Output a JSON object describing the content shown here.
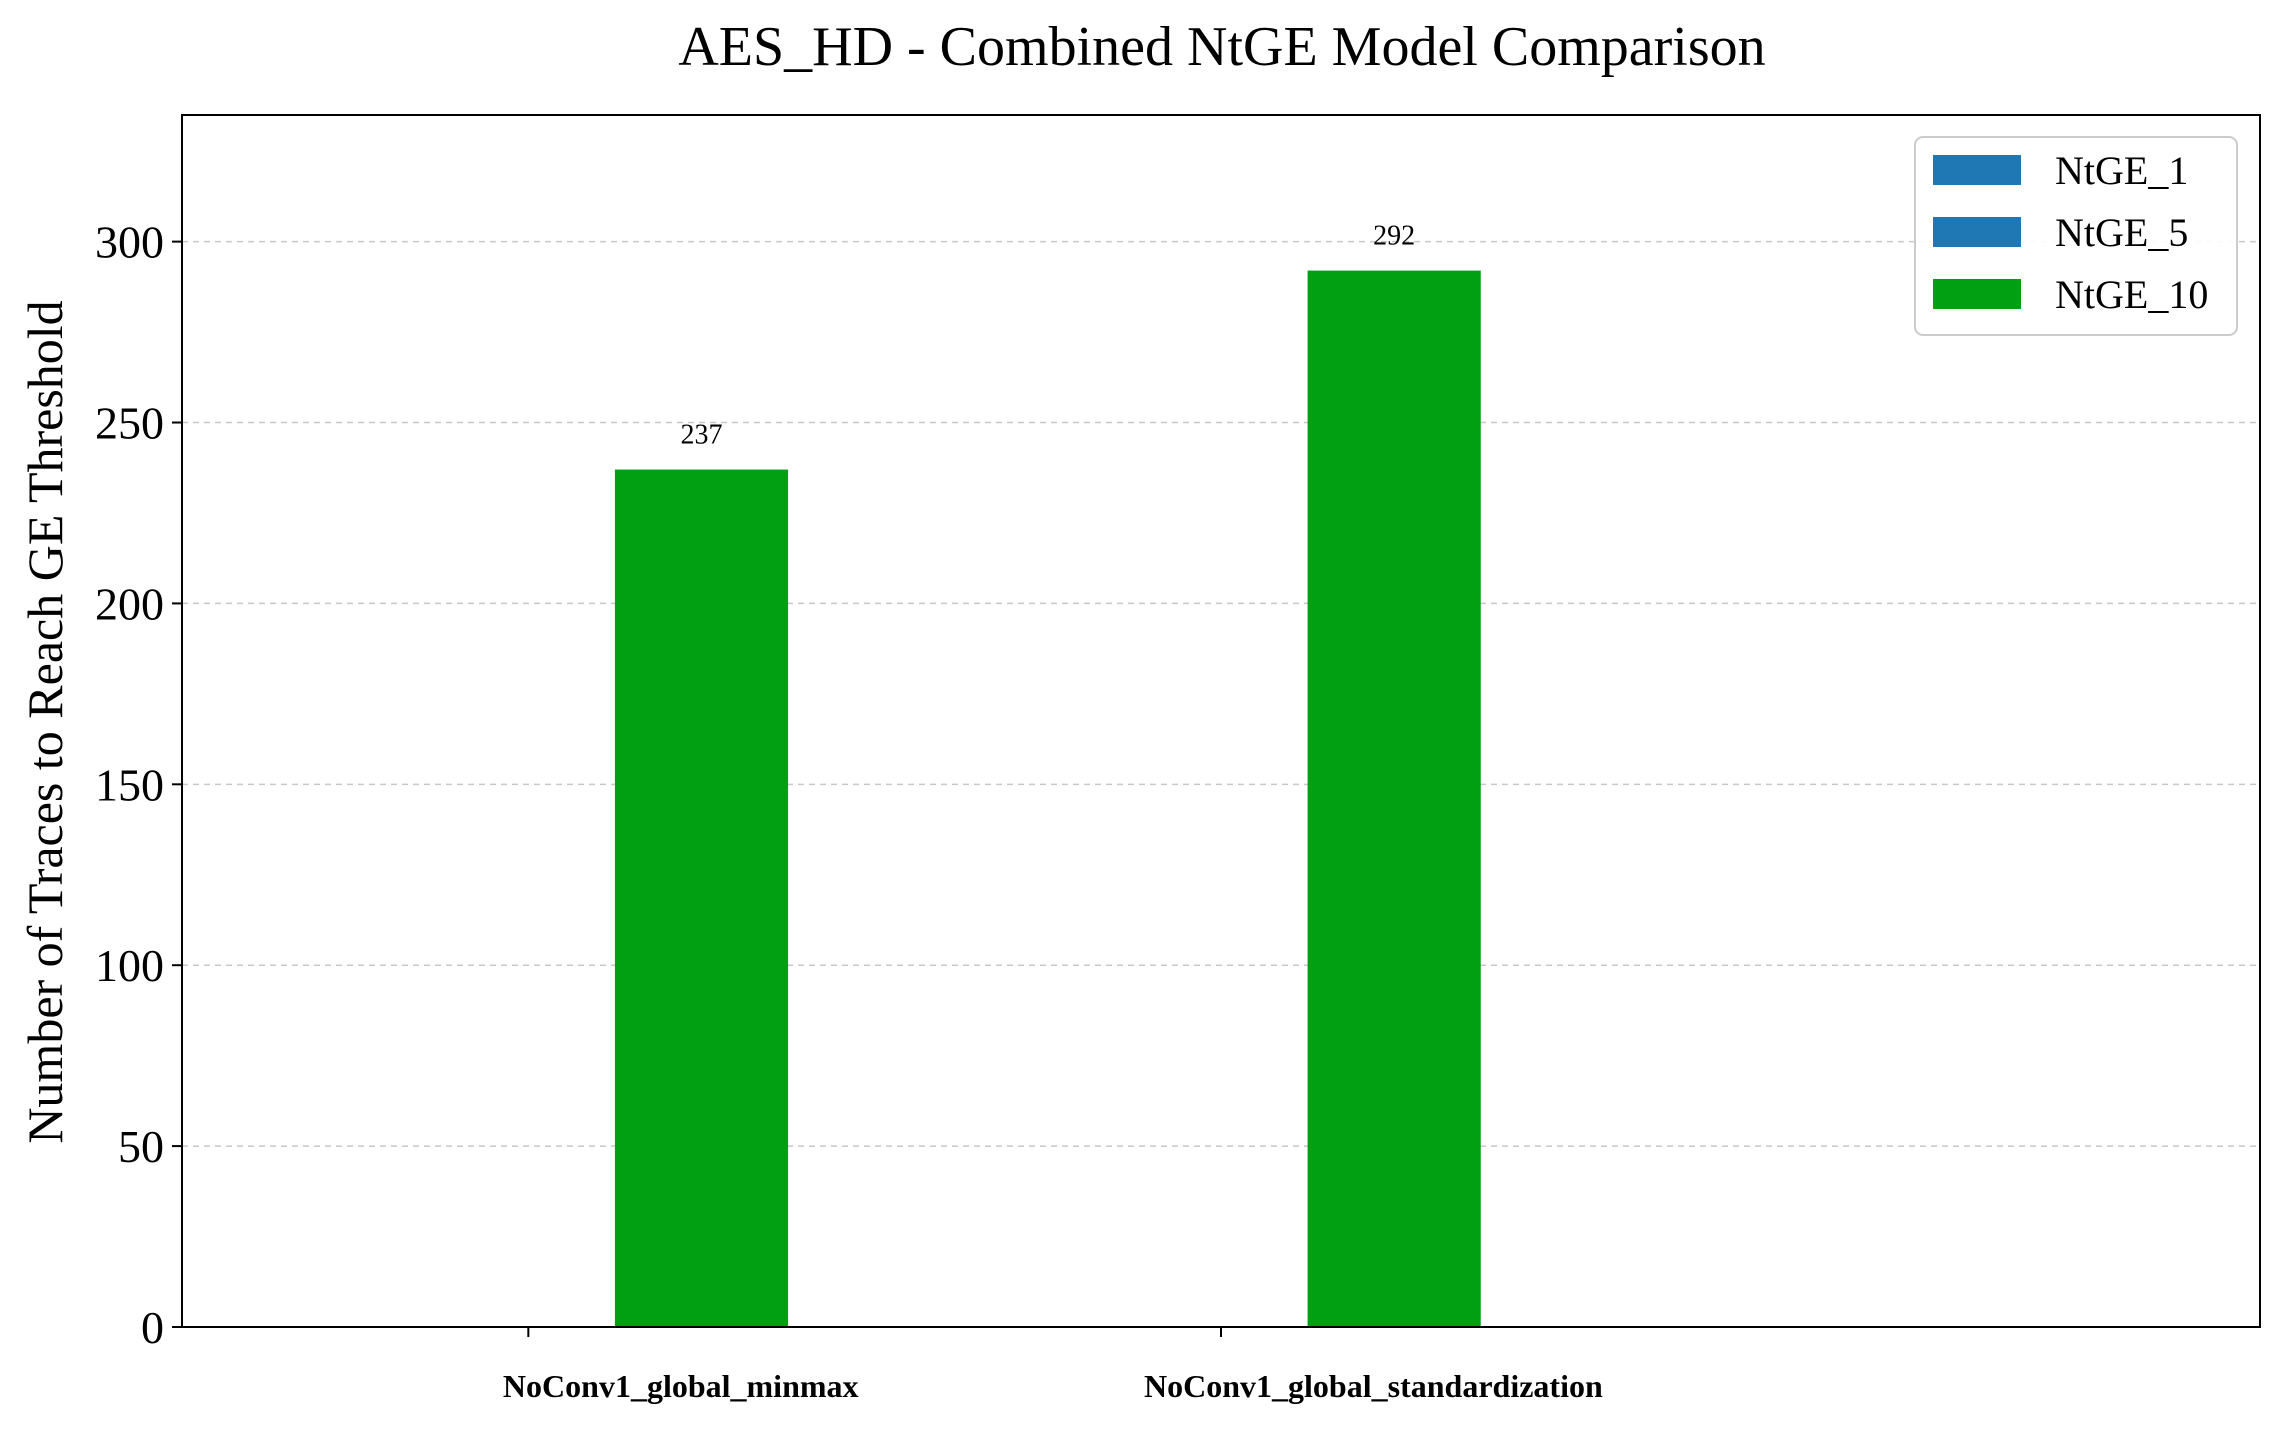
{
  "chart_data": {
    "type": "bar",
    "title": "AES_HD - Combined NtGE Model Comparison",
    "xlabel": "",
    "ylabel": "Number of Traces to Reach GE Threshold",
    "categories": [
      "NoConv1_global_minmax",
      "NoConv1_global_standardization"
    ],
    "series": [
      {
        "name": "NtGE_1",
        "color": "#1f77b4",
        "values": [
          0,
          0
        ]
      },
      {
        "name": "NtGE_5",
        "color": "#1f77b4",
        "values": [
          0,
          0
        ]
      },
      {
        "name": "NtGE_10",
        "color": "#00a012",
        "values": [
          237,
          292
        ]
      }
    ],
    "data_labels": [
      "237",
      "292"
    ],
    "ylim": [
      0,
      335
    ],
    "yticks": [
      0,
      50,
      100,
      150,
      200,
      250,
      300
    ],
    "grid": true,
    "legend_position": "top-right"
  }
}
